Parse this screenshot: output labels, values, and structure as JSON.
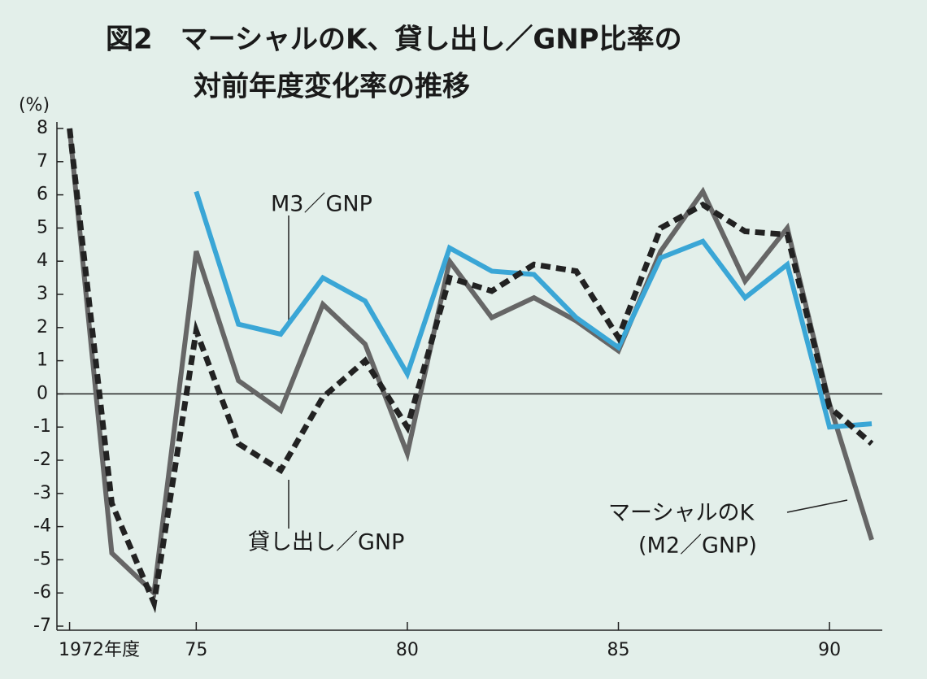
{
  "chart_data": {
    "type": "line",
    "title_lines": [
      "図2　マーシャルのK、貸し出し／GNP比率の",
      "対前年度変化率の推移"
    ],
    "y_unit": "(%)",
    "x": [
      1972,
      1973,
      1974,
      1975,
      1976,
      1977,
      1978,
      1979,
      1980,
      1981,
      1982,
      1983,
      1984,
      1985,
      1986,
      1987,
      1988,
      1989,
      1990,
      1991
    ],
    "series": [
      {
        "name": "マーシャルのK",
        "color": "#666666",
        "dash": false,
        "values": [
          8,
          -4.8,
          -6.0,
          4.3,
          0.4,
          -0.5,
          2.7,
          1.5,
          -1.8,
          4.0,
          2.3,
          2.9,
          2.2,
          1.3,
          4.3,
          6.1,
          3.4,
          5.0,
          -0.3,
          -4.4
        ]
      },
      {
        "name": "M3／GNP",
        "color": "#3aa6d6",
        "dash": false,
        "values": [
          null,
          null,
          null,
          6.1,
          2.1,
          1.8,
          3.5,
          2.8,
          0.6,
          4.4,
          3.7,
          3.6,
          2.3,
          1.4,
          4.1,
          4.6,
          2.9,
          3.9,
          -1.0,
          -0.9
        ]
      },
      {
        "name": "貸し出し／GNP",
        "color": "#222222",
        "dash": true,
        "values": [
          8,
          -3.3,
          -6.3,
          1.9,
          -1.5,
          -2.3,
          -0.1,
          1.0,
          -1.0,
          3.5,
          3.1,
          3.9,
          3.7,
          1.7,
          5.0,
          5.7,
          4.9,
          4.8,
          -0.4,
          -1.5
        ]
      }
    ],
    "marshall_note": "(M2／GNP)",
    "xlim": [
      1971.7,
      1991.25
    ],
    "xticks": [
      {
        "value": 1972,
        "label": "1972年度"
      },
      {
        "value": 1975,
        "label": "75"
      },
      {
        "value": 1980,
        "label": "80"
      },
      {
        "value": 1985,
        "label": "85"
      },
      {
        "value": 1990,
        "label": "90"
      }
    ],
    "ylim": [
      -7,
      8
    ],
    "yticks": [
      -7,
      -6,
      -5,
      -4,
      -3,
      -2,
      -1,
      0,
      1,
      2,
      3,
      4,
      5,
      6,
      7,
      8
    ],
    "zero_line": true
  }
}
